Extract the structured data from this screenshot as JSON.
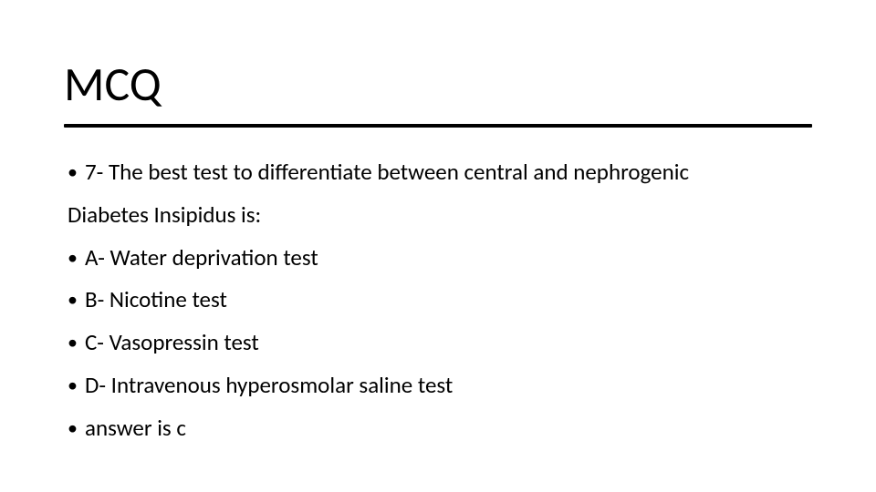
{
  "slide": {
    "title": "MCQ",
    "title_fontsize": 52,
    "title_color": "#000000",
    "underline_color": "#000000",
    "underline_width": 820,
    "underline_height": 4,
    "background_color": "#ffffff",
    "body_fontsize": 25,
    "body_color": "#000000",
    "bullet_char": "•",
    "lines": [
      {
        "bullet": true,
        "text": "7- The best test to differentiate between central and nephrogenic"
      },
      {
        "bullet": false,
        "text": "Diabetes Insipidus is:"
      },
      {
        "bullet": true,
        "text": "A- Water deprivation test"
      },
      {
        "bullet": true,
        "text": "B- Nicotine test"
      },
      {
        "bullet": true,
        "text": "C- Vasopressin test"
      },
      {
        "bullet": true,
        "text": "D- Intravenous hyperosmolar saline test"
      },
      {
        "bullet": true,
        "text": " answer is c"
      }
    ]
  }
}
